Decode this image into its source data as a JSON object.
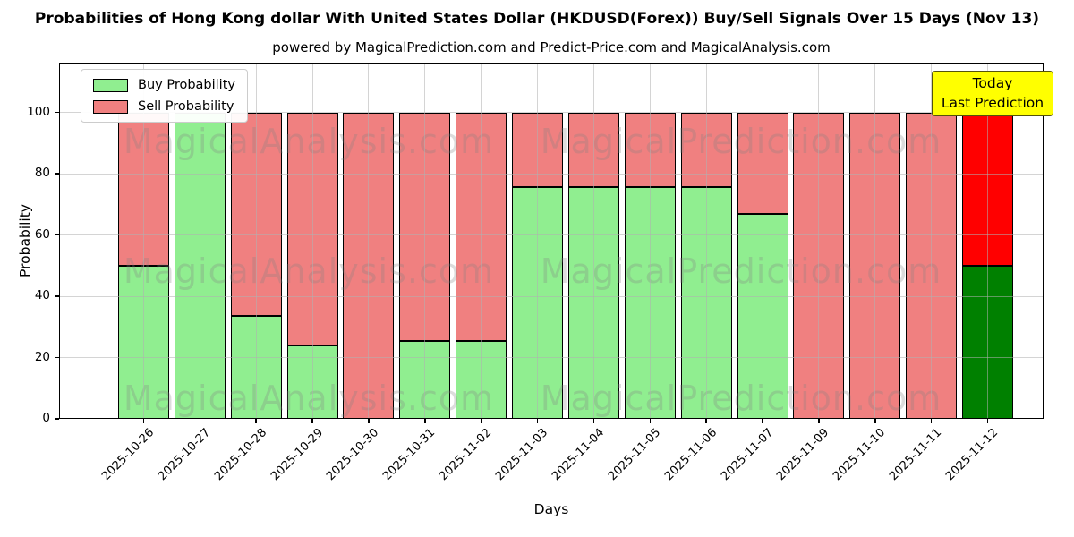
{
  "title": "Probabilities of Hong Kong dollar With United States Dollar (HKDUSD(Forex)) Buy/Sell Signals Over 15 Days (Nov 13)",
  "subtitle": "powered by MagicalPrediction.com and Predict-Price.com and MagicalAnalysis.com",
  "legend": {
    "items": [
      {
        "label": "Buy Probability",
        "color": "#90EE90"
      },
      {
        "label": "Sell Probability",
        "color": "#F08080"
      }
    ]
  },
  "annotation": {
    "line1": "Today",
    "line2": "Last Prediction",
    "bg_color": "#FFFF00"
  },
  "watermarks": {
    "left": "MagicalAnalysis.com",
    "right": "MagicalPrediction.com"
  },
  "axes": {
    "ylabel": "Probability",
    "xlabel": "Days",
    "yticks": [
      0,
      20,
      40,
      60,
      80,
      100
    ],
    "ylim": [
      0,
      116
    ],
    "dashed_line_y": 110,
    "grid": true
  },
  "chart_data": {
    "type": "bar",
    "stacked": true,
    "title": "Probabilities of Hong Kong dollar With United States Dollar (HKDUSD(Forex)) Buy/Sell Signals Over 15 Days (Nov 13)",
    "xlabel": "Days",
    "ylabel": "Probability",
    "ylim": [
      0,
      116
    ],
    "grid": true,
    "legend_position": "upper left",
    "categories": [
      "2025-10-26",
      "2025-10-27",
      "2025-10-28",
      "2025-10-29",
      "2025-10-30",
      "2025-10-31",
      "2025-11-02",
      "2025-11-03",
      "2025-11-04",
      "2025-11-05",
      "2025-11-06",
      "2025-11-07",
      "2025-11-09",
      "2025-11-10",
      "2025-11-11",
      "2025-11-12"
    ],
    "series": [
      {
        "name": "Buy Probability",
        "color": "#90EE90",
        "values": [
          50,
          100,
          33.5,
          24,
          0,
          25.5,
          25.5,
          75.5,
          75.5,
          75.5,
          75.5,
          67,
          0,
          0,
          0,
          50
        ]
      },
      {
        "name": "Sell Probability",
        "color": "#F08080",
        "values": [
          50,
          0,
          66.5,
          76,
          100,
          74.5,
          74.5,
          24.5,
          24.5,
          24.5,
          24.5,
          33,
          100,
          100,
          100,
          50
        ]
      }
    ],
    "today_bar": {
      "category": "2025-11-12",
      "index": 15,
      "buy_color": "#008000",
      "sell_color": "#FF0000"
    }
  }
}
